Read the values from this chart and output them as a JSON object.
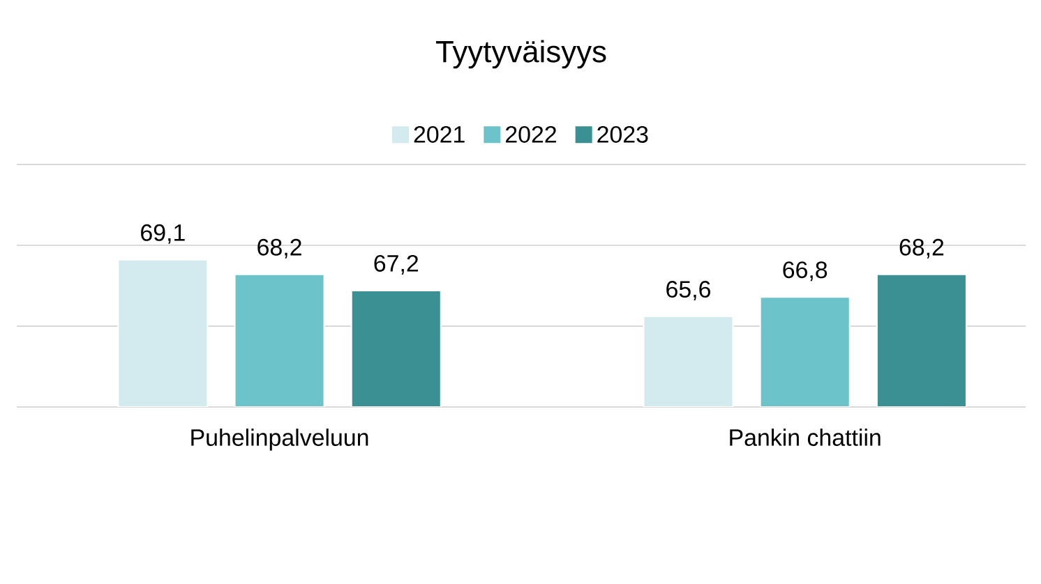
{
  "chart_data": {
    "type": "bar",
    "title": "Tyytyväisyys",
    "categories": [
      "Puhelinpalveluun",
      "Pankin chattiin"
    ],
    "series": [
      {
        "name": "2021",
        "color": "#d3ebee",
        "values": [
          69.1,
          65.6
        ],
        "value_labels": [
          "69,1",
          "65,6"
        ]
      },
      {
        "name": "2022",
        "color": "#6cc3c9",
        "values": [
          68.2,
          66.8
        ],
        "value_labels": [
          "68,2",
          "66,8"
        ]
      },
      {
        "name": "2023",
        "color": "#3a9093",
        "values": [
          67.2,
          68.2
        ],
        "value_labels": [
          "67,2",
          "68,2"
        ]
      }
    ],
    "ylim": [
      60,
      75
    ],
    "yticks": [
      {
        "value": 60,
        "label": null
      },
      {
        "value": 65,
        "label": null
      },
      {
        "value": 70,
        "label": null
      },
      {
        "value": 75,
        "label": null
      }
    ],
    "tick_labels": "x",
    "grid": "y",
    "legend": "top"
  }
}
